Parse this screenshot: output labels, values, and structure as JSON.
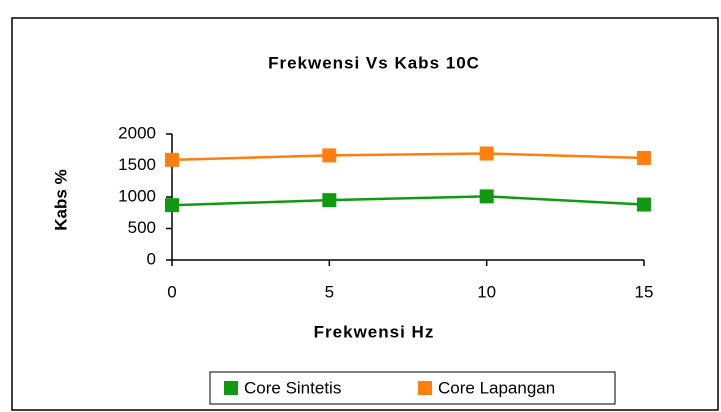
{
  "chart_data": {
    "type": "line",
    "title": "Frekwensi Vs Kabs 10C",
    "xlabel": "Frekwensi Hz",
    "ylabel": "Kabs %",
    "x": [
      0,
      5,
      10,
      15
    ],
    "xlim": [
      0,
      15
    ],
    "xticks": [
      0,
      5,
      10,
      15
    ],
    "ylim": [
      0,
      2000
    ],
    "yticks": [
      0,
      500,
      1000,
      1500,
      2000
    ],
    "grid": false,
    "legend": "bottom",
    "series": [
      {
        "name": "Core Sintetis",
        "color": "#119a11",
        "values": [
          870,
          950,
          1010,
          880
        ]
      },
      {
        "name": "Core Lapangan",
        "color": "#ff7f0e",
        "values": [
          1590,
          1660,
          1690,
          1620
        ]
      }
    ]
  }
}
